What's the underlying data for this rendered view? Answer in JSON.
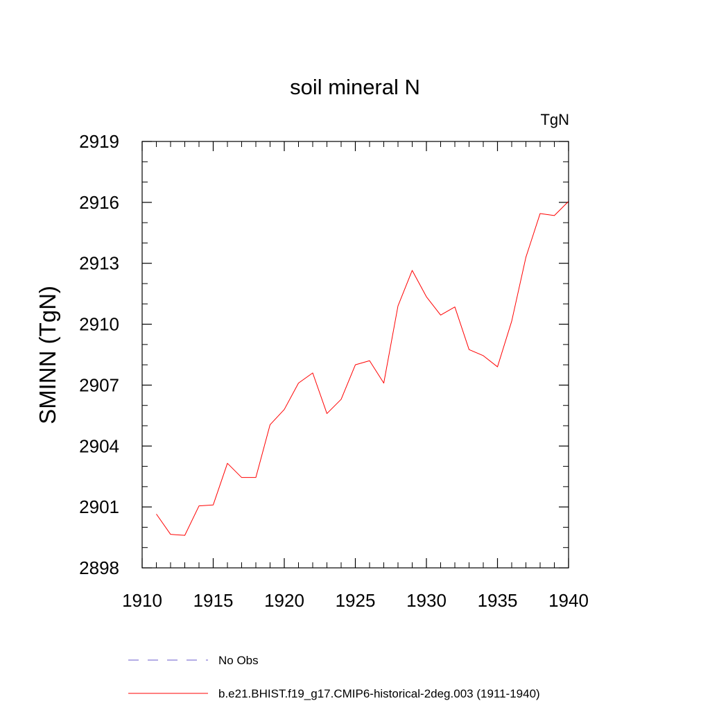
{
  "chart_data": {
    "type": "line",
    "title": "soil mineral N",
    "units_label": "TgN",
    "xlabel": "",
    "ylabel": "SMINN  (TgN)",
    "xlim": [
      1910,
      1940
    ],
    "ylim": [
      2898,
      2919
    ],
    "x_ticks": [
      1910,
      1915,
      1920,
      1925,
      1930,
      1935,
      1940
    ],
    "x_tick_labels": [
      "1910",
      "1915",
      "1920",
      "1925",
      "1930",
      "1935",
      "1940"
    ],
    "x_minor_step": 1,
    "y_ticks": [
      2898,
      2901,
      2904,
      2907,
      2910,
      2913,
      2916,
      2919
    ],
    "y_tick_labels": [
      "2898",
      "2901",
      "2904",
      "2907",
      "2910",
      "2913",
      "2916",
      "2919"
    ],
    "y_minor_step": 1,
    "grid": false,
    "legend_position": "bottom",
    "series": [
      {
        "name": "No Obs",
        "color": "#6a5acd",
        "dash": "dashed",
        "x": [],
        "y": []
      },
      {
        "name": "b.e21.BHIST.f19_g17.CMIP6-historical-2deg.003 (1911-1940)",
        "color": "#ff0000",
        "dash": "solid",
        "x": [
          1911,
          1912,
          1913,
          1914,
          1915,
          1916,
          1917,
          1918,
          1919,
          1920,
          1921,
          1922,
          1923,
          1924,
          1925,
          1926,
          1927,
          1928,
          1929,
          1930,
          1931,
          1932,
          1933,
          1934,
          1935,
          1936,
          1937,
          1938,
          1939,
          1940
        ],
        "y": [
          2900.65,
          2899.65,
          2899.6,
          2901.05,
          2901.1,
          2903.15,
          2902.45,
          2902.45,
          2905.05,
          2905.8,
          2907.1,
          2907.6,
          2905.6,
          2906.3,
          2908.0,
          2908.2,
          2907.1,
          2910.9,
          2912.65,
          2911.35,
          2910.45,
          2910.85,
          2908.75,
          2908.45,
          2907.9,
          2910.15,
          2913.3,
          2915.45,
          2915.35,
          2916.05
        ]
      }
    ]
  }
}
